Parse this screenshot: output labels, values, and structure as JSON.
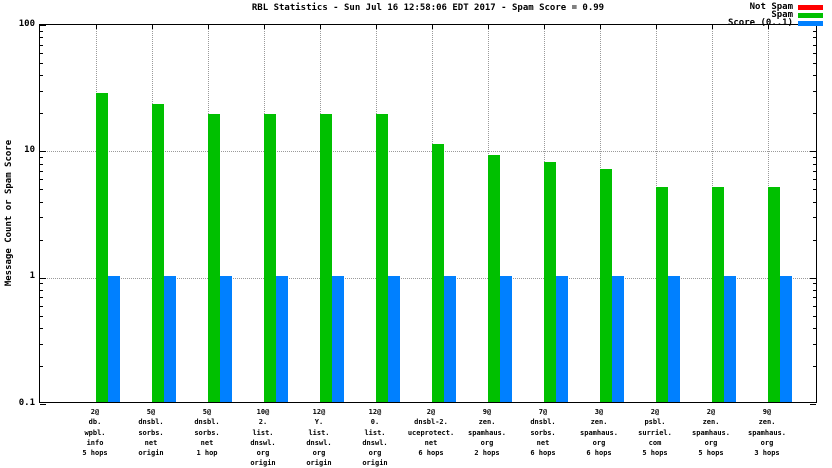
{
  "chart_data": {
    "type": "bar",
    "title": "RBL Statistics - Sun Jul 16 12:58:06 EDT 2017 - Spam Score = 0.99",
    "ylabel": "Message Count or Spam Score",
    "y_scale": "log",
    "ylim": [
      0.1,
      100
    ],
    "yticks": [
      100,
      10,
      1,
      0.1
    ],
    "grid": true,
    "legend_position": "top-right",
    "categories": [
      [
        "2@",
        "db.",
        "wpbl.",
        "info",
        "5 hops"
      ],
      [
        "5@",
        "dnsbl.",
        "sorbs.",
        "net",
        "origin"
      ],
      [
        "5@",
        "dnsbl.",
        "sorbs.",
        "net",
        "1 hop"
      ],
      [
        "10@",
        "2.",
        "list.",
        "dnswl.",
        "org",
        "origin"
      ],
      [
        "12@",
        "Y.",
        "list.",
        "dnswl.",
        "org",
        "origin"
      ],
      [
        "12@",
        "0.",
        "list.",
        "dnswl.",
        "org",
        "origin"
      ],
      [
        "2@",
        "dnsbl-2.",
        "uceprotect.",
        "net",
        "6 hops"
      ],
      [
        "9@",
        "zen.",
        "spamhaus.",
        "org",
        "2 hops"
      ],
      [
        "7@",
        "dnsbl.",
        "sorbs.",
        "net",
        "6 hops"
      ],
      [
        "3@",
        "zen.",
        "spamhaus.",
        "org",
        "6 hops"
      ],
      [
        "2@",
        "psbl.",
        "surriel.",
        "com",
        "5 hops"
      ],
      [
        "2@",
        "zen.",
        "spamhaus.",
        "org",
        "5 hops"
      ],
      [
        "9@",
        "zen.",
        "spamhaus.",
        "org",
        "3 hops"
      ]
    ],
    "series": [
      {
        "name": "Not Spam",
        "color": "#ff0000",
        "values": [
          0,
          0,
          0,
          0,
          0,
          0,
          0,
          0,
          0,
          0,
          0,
          0,
          0
        ]
      },
      {
        "name": "Spam",
        "color": "#00c000",
        "values": [
          28,
          23,
          19,
          19,
          19,
          19,
          11,
          9,
          8,
          7,
          5,
          5,
          5
        ]
      },
      {
        "name": "Score (0..1)",
        "color": "#0080ff",
        "values": [
          0.99,
          0.99,
          0.99,
          0.99,
          0.99,
          0.99,
          0.99,
          0.99,
          0.99,
          0.99,
          0.99,
          0.99,
          0.99
        ]
      }
    ]
  }
}
